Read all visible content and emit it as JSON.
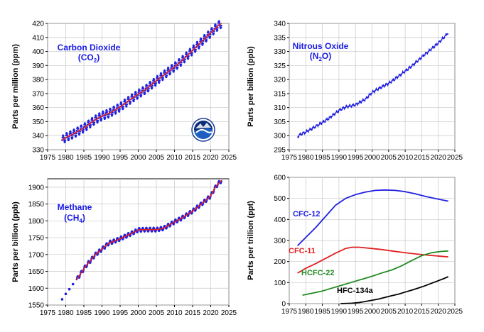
{
  "chart_data": [
    {
      "type": "line",
      "ylabel": "Parts per million (ppm)",
      "xlim": [
        1975,
        2025
      ],
      "ylim": [
        330,
        420
      ],
      "xticks": [
        "1975",
        "1980",
        "1985",
        "1990",
        "1995",
        "2000",
        "2005",
        "2010",
        "2015",
        "2020",
        "2025"
      ],
      "yticks": [
        "330",
        "340",
        "350",
        "360",
        "370",
        "380",
        "390",
        "400",
        "410",
        "420"
      ],
      "grid": true,
      "annotation": {
        "line1": "Carbon Dioxide",
        "line2": "(CO",
        "sub": "2",
        "line2_end": ")",
        "color": "#1a1ae6"
      },
      "logo": "noaa-logo",
      "series": [
        {
          "color": "#2020e0",
          "style": "seasonal-points",
          "x": [
            1979,
            1980,
            1982,
            1985,
            1988,
            1990,
            1992,
            1995,
            1998,
            2000,
            2002,
            2005,
            2008,
            2010,
            2012,
            2015,
            2018,
            2020,
            2022,
            2023
          ],
          "values": [
            336.8,
            338.7,
            341.1,
            345.5,
            351.1,
            354.1,
            356.0,
            360.4,
            366.1,
            369.6,
            372.9,
            379.1,
            385.1,
            388.9,
            393.3,
            400.8,
            408.2,
            413.2,
            418.3,
            420.0
          ]
        },
        {
          "color": "#e02020",
          "style": "trend",
          "x": [
            1979,
            1980,
            1982,
            1985,
            1988,
            1990,
            1992,
            1995,
            1998,
            2000,
            2002,
            2005,
            2008,
            2010,
            2012,
            2015,
            2018,
            2020,
            2022,
            2023
          ],
          "values": [
            336.8,
            338.7,
            341.1,
            345.5,
            351.1,
            354.1,
            356.0,
            360.4,
            366.1,
            369.6,
            372.9,
            379.1,
            385.1,
            388.9,
            393.3,
            400.8,
            408.2,
            413.2,
            418.3,
            420.0
          ]
        }
      ]
    },
    {
      "type": "line",
      "ylabel": "Parts per billion (ppb)",
      "xlim": [
        1975,
        2025
      ],
      "ylim": [
        295,
        340
      ],
      "xticks": [
        "1975",
        "1980",
        "1985",
        "1990",
        "1995",
        "2000",
        "2005",
        "2010",
        "2015",
        "2020",
        "2025"
      ],
      "yticks": [
        "295",
        "300",
        "305",
        "310",
        "315",
        "320",
        "325",
        "330",
        "335",
        "340"
      ],
      "grid": true,
      "annotation": {
        "line1": "Nitrous Oxide",
        "line2": "(N",
        "sub": "2",
        "line2_end": "O)",
        "color": "#1a1ae6"
      },
      "series": [
        {
          "color": "#2020e0",
          "style": "noisy-line",
          "x": [
            1977.5,
            1978,
            1980,
            1982,
            1985,
            1987,
            1990,
            1992,
            1995,
            1998,
            2000,
            2002,
            2005,
            2008,
            2010,
            2012,
            2015,
            2018,
            2020,
            2022,
            2023
          ],
          "values": [
            299.5,
            300.2,
            301.3,
            302.6,
            304.7,
            306.2,
            309.0,
            310.2,
            311.0,
            313.0,
            315.4,
            316.8,
            318.6,
            321.2,
            323.0,
            324.8,
            328.0,
            331.0,
            333.0,
            335.4,
            336.8
          ]
        }
      ]
    },
    {
      "type": "line",
      "ylabel": "Parts per billion (ppb)",
      "xlim": [
        1975,
        2025
      ],
      "ylim": [
        1550,
        1925
      ],
      "xticks": [
        "1975",
        "1980",
        "1985",
        "1990",
        "1995",
        "2000",
        "2005",
        "2010",
        "2015",
        "2020",
        "2025"
      ],
      "yticks": [
        "1550",
        "1600",
        "1650",
        "1700",
        "1750",
        "1800",
        "1850",
        "1900"
      ],
      "grid": true,
      "annotation": {
        "line1": "Methane",
        "line2": "(CH",
        "sub": "4",
        "line2_end": ")",
        "color": "#1a1ae6"
      },
      "series": [
        {
          "color": "#2020e0",
          "style": "seasonal-points",
          "x": [
            1979,
            1980,
            1981,
            1982,
            1983,
            1984,
            1985,
            1986,
            1987,
            1988,
            1990,
            1992,
            1993,
            1995,
            1998,
            2000,
            2002,
            2005,
            2007,
            2010,
            2012,
            2015,
            2018,
            2020,
            2021,
            2022,
            2023
          ],
          "values": [
            1567,
            1583,
            1597,
            1612,
            1626,
            1641,
            1658,
            1672,
            1684,
            1698,
            1716,
            1735,
            1738,
            1747,
            1762,
            1773,
            1774,
            1774,
            1778,
            1797,
            1808,
            1829,
            1855,
            1874,
            1895,
            1910,
            1920
          ]
        },
        {
          "color": "#e02020",
          "style": "trend",
          "x": [
            1983,
            1984,
            1985,
            1986,
            1987,
            1988,
            1990,
            1992,
            1993,
            1995,
            1998,
            2000,
            2002,
            2005,
            2007,
            2010,
            2012,
            2015,
            2018,
            2020,
            2021,
            2022,
            2023
          ],
          "values": [
            1626,
            1641,
            1658,
            1672,
            1684,
            1698,
            1716,
            1735,
            1738,
            1747,
            1762,
            1773,
            1774,
            1774,
            1778,
            1797,
            1808,
            1829,
            1855,
            1874,
            1895,
            1910,
            1920
          ]
        }
      ]
    },
    {
      "type": "line",
      "ylabel": "Parts per trillion (ppt)",
      "xlim": [
        1975,
        2025
      ],
      "ylim": [
        0,
        600
      ],
      "xticks": [
        "1975",
        "1980",
        "1985",
        "1990",
        "1995",
        "2000",
        "2005",
        "2010",
        "2015",
        "2020",
        "2025"
      ],
      "yticks": [
        "0",
        "100",
        "200",
        "300",
        "400",
        "500",
        "600"
      ],
      "grid": true,
      "series": [
        {
          "name": "CFC-12",
          "color": "#2020e0",
          "x": [
            1977.5,
            1980,
            1983,
            1986,
            1989,
            1992,
            1995,
            1998,
            2001,
            2004,
            2007,
            2010,
            2013,
            2016,
            2019,
            2022,
            2023
          ],
          "values": [
            275,
            315,
            362,
            415,
            468,
            500,
            518,
            530,
            538,
            540,
            538,
            532,
            522,
            510,
            500,
            490,
            487
          ]
        },
        {
          "name": "CFC-11",
          "color": "#e02020",
          "x": [
            1977.5,
            1980,
            1983,
            1986,
            1989,
            1992,
            1994,
            1996,
            1998,
            2000,
            2003,
            2006,
            2009,
            2012,
            2015,
            2018,
            2021,
            2023
          ],
          "values": [
            145,
            168,
            190,
            215,
            240,
            262,
            268,
            268,
            265,
            262,
            257,
            250,
            244,
            238,
            233,
            229,
            225,
            222
          ]
        },
        {
          "name": "HCFC-22",
          "color": "#228b22",
          "x": [
            1979,
            1982,
            1985,
            1988,
            1991,
            1994,
            1997,
            2000,
            2003,
            2006,
            2009,
            2012,
            2015,
            2018,
            2021,
            2023
          ],
          "values": [
            40,
            50,
            60,
            74,
            88,
            102,
            116,
            130,
            146,
            160,
            180,
            205,
            228,
            242,
            248,
            250
          ]
        },
        {
          "name": "HFC-134a",
          "color": "#000000",
          "x": [
            1990.5,
            1994,
            1996,
            1998,
            2000,
            2002,
            2004,
            2006,
            2008,
            2010,
            2012,
            2014,
            2016,
            2018,
            2020,
            2022,
            2023
          ],
          "values": [
            0,
            2,
            5,
            10,
            16,
            22,
            30,
            38,
            45,
            55,
            64,
            74,
            85,
            97,
            109,
            121,
            128
          ]
        }
      ]
    }
  ]
}
